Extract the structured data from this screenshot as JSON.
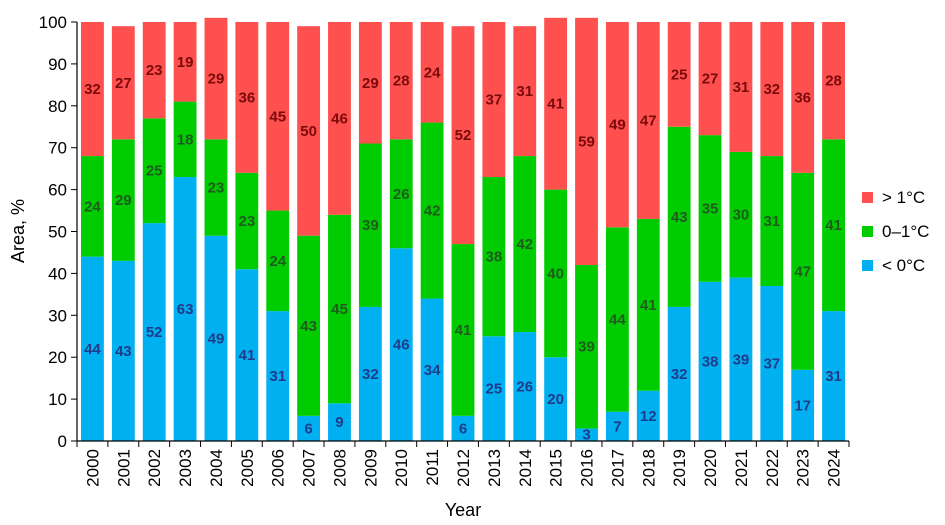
{
  "chart_data": {
    "type": "bar",
    "stacked": true,
    "title": "",
    "xlabel": "Year",
    "ylabel": "Area, %",
    "ylim": [
      0,
      100
    ],
    "yticks": [
      "0",
      "10",
      "20",
      "30",
      "40",
      "50",
      "60",
      "70",
      "80",
      "90",
      "100"
    ],
    "grid": false,
    "legend_position": "right",
    "categories": [
      "2000",
      "2001",
      "2002",
      "2003",
      "2004",
      "2005",
      "2006",
      "2007",
      "2008",
      "2009",
      "2010",
      "2011",
      "2012",
      "2013",
      "2014",
      "2015",
      "2016",
      "2017",
      "2018",
      "2019",
      "2020",
      "2021",
      "2022",
      "2023",
      "2024"
    ],
    "series": [
      {
        "name": "< 0°C",
        "color": "#00b0f0",
        "label_color": "#1f3b8a",
        "values": [
          44,
          43,
          52,
          63,
          49,
          41,
          31,
          6,
          9,
          32,
          46,
          34,
          6,
          25,
          26,
          20,
          3,
          7,
          12,
          32,
          38,
          39,
          37,
          17,
          31
        ]
      },
      {
        "name": "0–1°C",
        "color": "#00cc00",
        "label_color": "#1e5c1e",
        "values": [
          24,
          29,
          25,
          18,
          23,
          23,
          24,
          43,
          45,
          39,
          26,
          42,
          41,
          38,
          42,
          40,
          39,
          44,
          41,
          43,
          35,
          30,
          31,
          47,
          41
        ]
      },
      {
        "name": "> 1°C",
        "color": "#ff5050",
        "label_color": "#7a0a0a",
        "values": [
          32,
          27,
          23,
          19,
          29,
          36,
          45,
          50,
          46,
          29,
          28,
          24,
          52,
          37,
          31,
          41,
          59,
          49,
          47,
          25,
          27,
          31,
          32,
          36,
          28
        ]
      }
    ],
    "legend_order": [
      "> 1°C",
      "0–1°C",
      "< 0°C"
    ]
  }
}
